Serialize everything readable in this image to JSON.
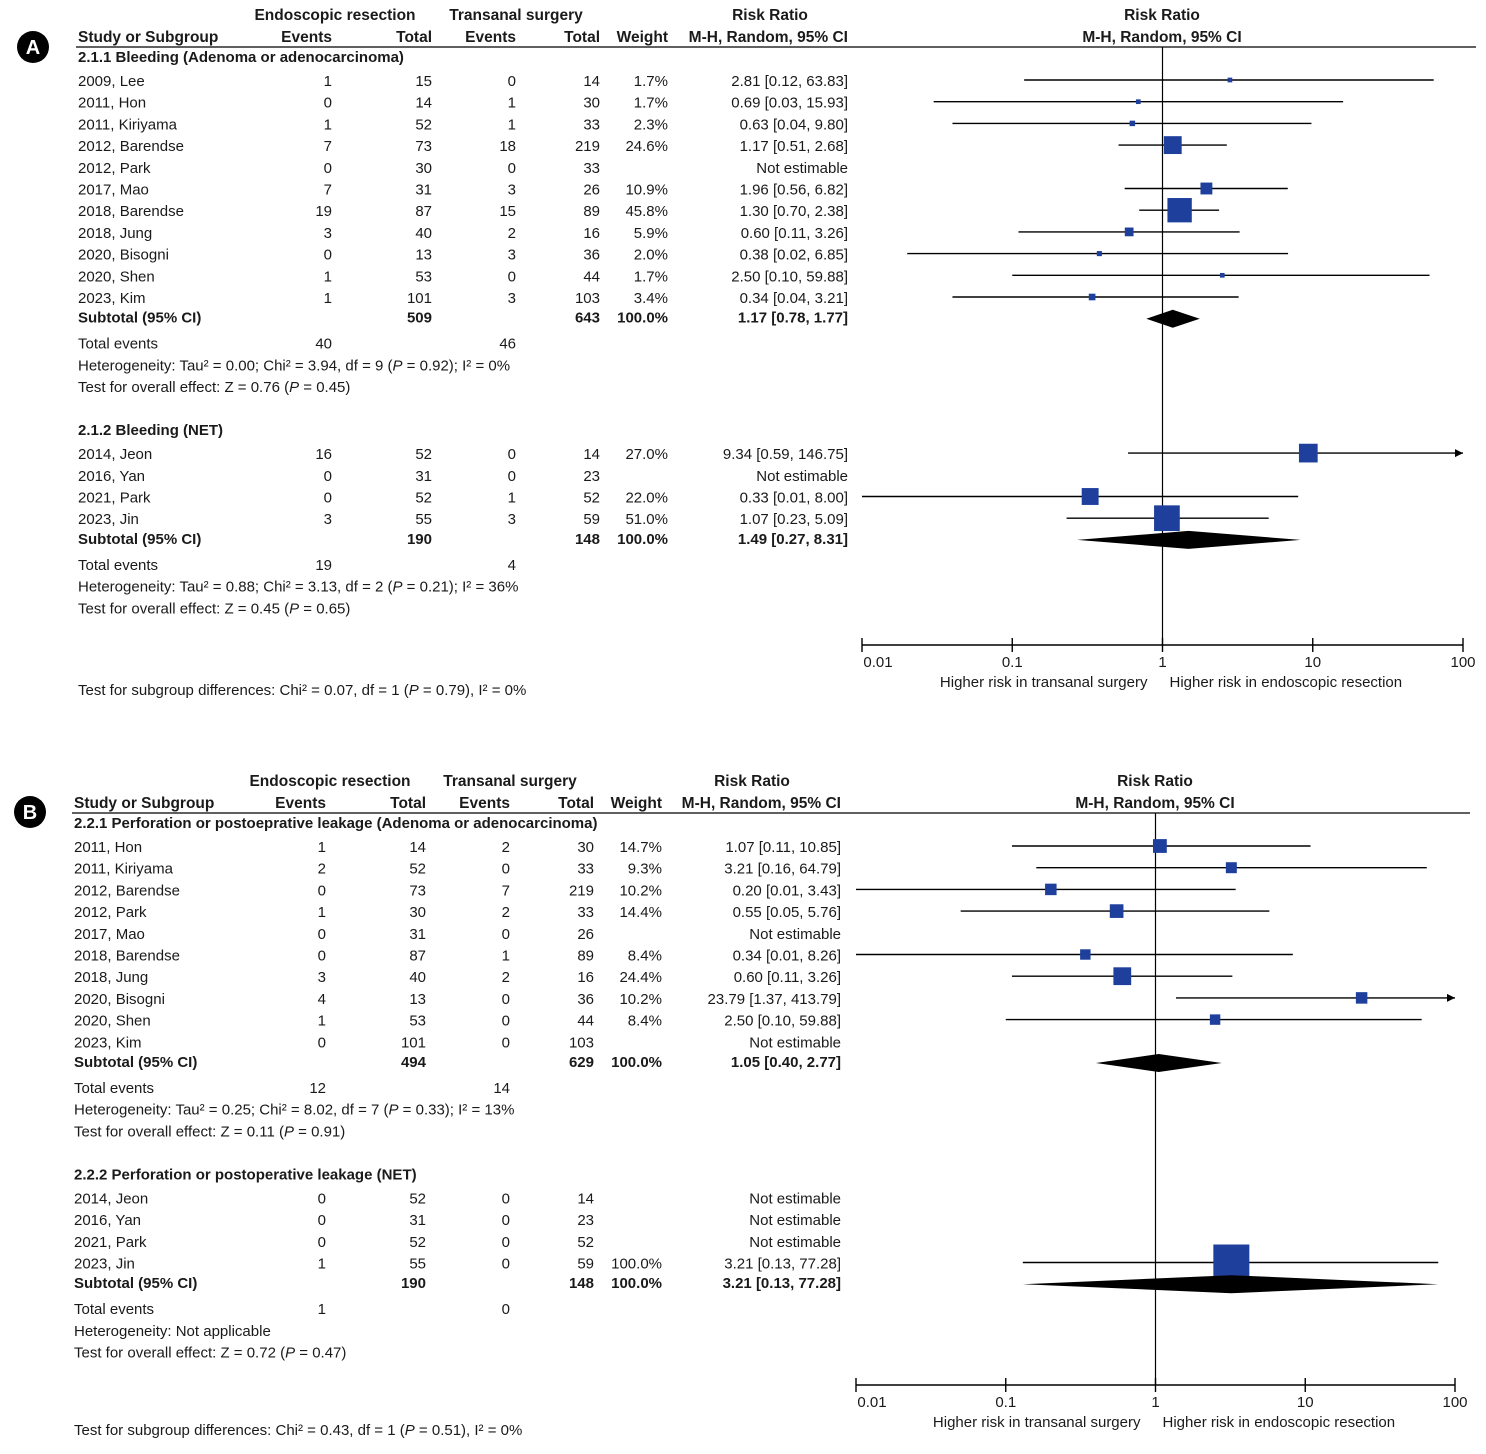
{
  "headers": {
    "group_e": "Endoscopic resection",
    "group_t": "Transanal surgery",
    "rr_head": "Risk Ratio",
    "col_study": "Study or Subgroup",
    "col_events": "Events",
    "col_total": "Total",
    "col_weight": "Weight",
    "col_rr": "M-H, Random, 95% CI"
  },
  "colors": {
    "square": "#1f3f9c",
    "diamond": "#000000",
    "line": "#000000",
    "badge": "#000000"
  },
  "axis": {
    "scale": "log",
    "ticks": [
      0.01,
      0.1,
      1,
      10,
      100
    ],
    "tick_labels": [
      "0.01",
      "0.1",
      "1",
      "10",
      "100"
    ],
    "left_label": "Higher risk in transanal surgery",
    "right_label": "Higher risk in endoscopic resection"
  },
  "chart_data": [
    {
      "type": "forest",
      "panel": "A",
      "subgroups": [
        {
          "title": "2.1.1 Bleeding (Adenoma or adenocarcinoma)",
          "studies": [
            {
              "name": "2009, Lee",
              "e_events": "1",
              "e_total": "15",
              "t_events": "0",
              "t_total": "14",
              "weight": "1.7%",
              "rr_text": "2.81 [0.12, 63.83]",
              "rr": 2.81,
              "lo": 0.12,
              "hi": 63.83,
              "w": 1.7
            },
            {
              "name": "2011, Hon",
              "e_events": "0",
              "e_total": "14",
              "t_events": "1",
              "t_total": "30",
              "weight": "1.7%",
              "rr_text": "0.69 [0.03, 15.93]",
              "rr": 0.69,
              "lo": 0.03,
              "hi": 15.93,
              "w": 1.7
            },
            {
              "name": "2011, Kiriyama",
              "e_events": "1",
              "e_total": "52",
              "t_events": "1",
              "t_total": "33",
              "weight": "2.3%",
              "rr_text": "0.63 [0.04, 9.80]",
              "rr": 0.63,
              "lo": 0.04,
              "hi": 9.8,
              "w": 2.3
            },
            {
              "name": "2012, Barendse",
              "e_events": "7",
              "e_total": "73",
              "t_events": "18",
              "t_total": "219",
              "weight": "24.6%",
              "rr_text": "1.17 [0.51, 2.68]",
              "rr": 1.17,
              "lo": 0.51,
              "hi": 2.68,
              "w": 24.6
            },
            {
              "name": "2012, Park",
              "e_events": "0",
              "e_total": "30",
              "t_events": "0",
              "t_total": "33",
              "weight": "",
              "rr_text": "Not estimable",
              "rr": null,
              "lo": null,
              "hi": null,
              "w": 0
            },
            {
              "name": "2017, Mao",
              "e_events": "7",
              "e_total": "31",
              "t_events": "3",
              "t_total": "26",
              "weight": "10.9%",
              "rr_text": "1.96 [0.56, 6.82]",
              "rr": 1.96,
              "lo": 0.56,
              "hi": 6.82,
              "w": 10.9
            },
            {
              "name": "2018, Barendse",
              "e_events": "19",
              "e_total": "87",
              "t_events": "15",
              "t_total": "89",
              "weight": "45.8%",
              "rr_text": "1.30 [0.70, 2.38]",
              "rr": 1.3,
              "lo": 0.7,
              "hi": 2.38,
              "w": 45.8
            },
            {
              "name": "2018, Jung",
              "e_events": "3",
              "e_total": "40",
              "t_events": "2",
              "t_total": "16",
              "weight": "5.9%",
              "rr_text": "0.60 [0.11, 3.26]",
              "rr": 0.6,
              "lo": 0.11,
              "hi": 3.26,
              "w": 5.9
            },
            {
              "name": "2020, Bisogni",
              "e_events": "0",
              "e_total": "13",
              "t_events": "3",
              "t_total": "36",
              "weight": "2.0%",
              "rr_text": "0.38 [0.02, 6.85]",
              "rr": 0.38,
              "lo": 0.02,
              "hi": 6.85,
              "w": 2.0
            },
            {
              "name": "2020, Shen",
              "e_events": "1",
              "e_total": "53",
              "t_events": "0",
              "t_total": "44",
              "weight": "1.7%",
              "rr_text": "2.50 [0.10, 59.88]",
              "rr": 2.5,
              "lo": 0.1,
              "hi": 59.88,
              "w": 1.7
            },
            {
              "name": "2023, Kim",
              "e_events": "1",
              "e_total": "101",
              "t_events": "3",
              "t_total": "103",
              "weight": "3.4%",
              "rr_text": "0.34 [0.04, 3.21]",
              "rr": 0.34,
              "lo": 0.04,
              "hi": 3.21,
              "w": 3.4
            }
          ],
          "subtotal": {
            "label": "Subtotal (95% CI)",
            "e_total": "509",
            "t_total": "643",
            "weight": "100.0%",
            "rr_text": "1.17 [0.78, 1.77]",
            "rr": 1.17,
            "lo": 0.78,
            "hi": 1.77
          },
          "total_events": {
            "label": "Total events",
            "e": "40",
            "t": "46"
          },
          "heterogeneity": [
            "Heterogeneity: Tau² = 0.00; Chi² = 3.94, df = 9 (",
            "P",
            " = 0.92); I² = 0%"
          ],
          "overall": [
            "Test for overall effect: Z = 0.76 (",
            "P",
            " = 0.45)"
          ]
        },
        {
          "title": "2.1.2 Bleeding (NET)",
          "studies": [
            {
              "name": "2014, Jeon",
              "e_events": "16",
              "e_total": "52",
              "t_events": "0",
              "t_total": "14",
              "weight": "27.0%",
              "rr_text": "9.34 [0.59, 146.75]",
              "rr": 9.34,
              "lo": 0.59,
              "hi": 146.75,
              "w": 27.0
            },
            {
              "name": "2016, Yan",
              "e_events": "0",
              "e_total": "31",
              "t_events": "0",
              "t_total": "23",
              "weight": "",
              "rr_text": "Not estimable",
              "rr": null,
              "lo": null,
              "hi": null,
              "w": 0
            },
            {
              "name": "2021, Park",
              "e_events": "0",
              "e_total": "52",
              "t_events": "1",
              "t_total": "52",
              "weight": "22.0%",
              "rr_text": "0.33 [0.01, 8.00]",
              "rr": 0.33,
              "lo": 0.01,
              "hi": 8.0,
              "w": 22.0
            },
            {
              "name": "2023, Jin",
              "e_events": "3",
              "e_total": "55",
              "t_events": "3",
              "t_total": "59",
              "weight": "51.0%",
              "rr_text": "1.07 [0.23, 5.09]",
              "rr": 1.07,
              "lo": 0.23,
              "hi": 5.09,
              "w": 51.0
            }
          ],
          "subtotal": {
            "label": "Subtotal (95% CI)",
            "e_total": "190",
            "t_total": "148",
            "weight": "100.0%",
            "rr_text": "1.49 [0.27, 8.31]",
            "rr": 1.49,
            "lo": 0.27,
            "hi": 8.31
          },
          "total_events": {
            "label": "Total events",
            "e": "19",
            "t": "4"
          },
          "heterogeneity": [
            "Heterogeneity: Tau² = 0.88; Chi² = 3.13, df = 2 (",
            "P",
            " = 0.21); I² = 36%"
          ],
          "overall": [
            "Test for overall effect: Z = 0.45 (",
            "P",
            " = 0.65)"
          ]
        }
      ],
      "subgroup_diff": [
        "Test for subgroup differences: Chi² = 0.07, df = 1 (",
        "P",
        " = 0.79), I² = 0%"
      ]
    },
    {
      "type": "forest",
      "panel": "B",
      "subgroups": [
        {
          "title": "2.2.1 Perforation or postoeprative leakage (Adenoma or adenocarcinoma)",
          "studies": [
            {
              "name": "2011, Hon",
              "e_events": "1",
              "e_total": "14",
              "t_events": "2",
              "t_total": "30",
              "weight": "14.7%",
              "rr_text": "1.07 [0.11, 10.85]",
              "rr": 1.07,
              "lo": 0.11,
              "hi": 10.85,
              "w": 14.7
            },
            {
              "name": "2011, Kiriyama",
              "e_events": "2",
              "e_total": "52",
              "t_events": "0",
              "t_total": "33",
              "weight": "9.3%",
              "rr_text": "3.21 [0.16, 64.79]",
              "rr": 3.21,
              "lo": 0.16,
              "hi": 64.79,
              "w": 9.3
            },
            {
              "name": "2012, Barendse",
              "e_events": "0",
              "e_total": "73",
              "t_events": "7",
              "t_total": "219",
              "weight": "10.2%",
              "rr_text": "0.20 [0.01, 3.43]",
              "rr": 0.2,
              "lo": 0.01,
              "hi": 3.43,
              "w": 10.2
            },
            {
              "name": "2012, Park",
              "e_events": "1",
              "e_total": "30",
              "t_events": "2",
              "t_total": "33",
              "weight": "14.4%",
              "rr_text": "0.55 [0.05, 5.76]",
              "rr": 0.55,
              "lo": 0.05,
              "hi": 5.76,
              "w": 14.4
            },
            {
              "name": "2017, Mao",
              "e_events": "0",
              "e_total": "31",
              "t_events": "0",
              "t_total": "26",
              "weight": "",
              "rr_text": "Not estimable",
              "rr": null,
              "lo": null,
              "hi": null,
              "w": 0
            },
            {
              "name": "2018, Barendse",
              "e_events": "0",
              "e_total": "87",
              "t_events": "1",
              "t_total": "89",
              "weight": "8.4%",
              "rr_text": "0.34 [0.01, 8.26]",
              "rr": 0.34,
              "lo": 0.01,
              "hi": 8.26,
              "w": 8.4
            },
            {
              "name": "2018, Jung",
              "e_events": "3",
              "e_total": "40",
              "t_events": "2",
              "t_total": "16",
              "weight": "24.4%",
              "rr_text": "0.60 [0.11, 3.26]",
              "rr": 0.6,
              "lo": 0.11,
              "hi": 3.26,
              "w": 24.4
            },
            {
              "name": "2020, Bisogni",
              "e_events": "4",
              "e_total": "13",
              "t_events": "0",
              "t_total": "36",
              "weight": "10.2%",
              "rr_text": "23.79 [1.37, 413.79]",
              "rr": 23.79,
              "lo": 1.37,
              "hi": 413.79,
              "w": 10.2
            },
            {
              "name": "2020, Shen",
              "e_events": "1",
              "e_total": "53",
              "t_events": "0",
              "t_total": "44",
              "weight": "8.4%",
              "rr_text": "2.50 [0.10, 59.88]",
              "rr": 2.5,
              "lo": 0.1,
              "hi": 59.88,
              "w": 8.4
            },
            {
              "name": "2023, Kim",
              "e_events": "0",
              "e_total": "101",
              "t_events": "0",
              "t_total": "103",
              "weight": "",
              "rr_text": "Not estimable",
              "rr": null,
              "lo": null,
              "hi": null,
              "w": 0
            }
          ],
          "subtotal": {
            "label": "Subtotal (95% CI)",
            "e_total": "494",
            "t_total": "629",
            "weight": "100.0%",
            "rr_text": "1.05 [0.40, 2.77]",
            "rr": 1.05,
            "lo": 0.4,
            "hi": 2.77
          },
          "total_events": {
            "label": "Total events",
            "e": "12",
            "t": "14"
          },
          "heterogeneity": [
            "Heterogeneity: Tau² = 0.25; Chi² = 8.02, df = 7 (",
            "P",
            " = 0.33); I² = 13%"
          ],
          "overall": [
            "Test for overall effect: Z = 0.11 (",
            "P",
            " = 0.91)"
          ]
        },
        {
          "title": "2.2.2 Perforation or postoperative leakage (NET)",
          "studies": [
            {
              "name": "2014, Jeon",
              "e_events": "0",
              "e_total": "52",
              "t_events": "0",
              "t_total": "14",
              "weight": "",
              "rr_text": "Not estimable",
              "rr": null,
              "lo": null,
              "hi": null,
              "w": 0
            },
            {
              "name": "2016, Yan",
              "e_events": "0",
              "e_total": "31",
              "t_events": "0",
              "t_total": "23",
              "weight": "",
              "rr_text": "Not estimable",
              "rr": null,
              "lo": null,
              "hi": null,
              "w": 0
            },
            {
              "name": "2021, Park",
              "e_events": "0",
              "e_total": "52",
              "t_events": "0",
              "t_total": "52",
              "weight": "",
              "rr_text": "Not estimable",
              "rr": null,
              "lo": null,
              "hi": null,
              "w": 0
            },
            {
              "name": "2023, Jin",
              "e_events": "1",
              "e_total": "55",
              "t_events": "0",
              "t_total": "59",
              "weight": "100.0%",
              "rr_text": "3.21 [0.13, 77.28]",
              "rr": 3.21,
              "lo": 0.13,
              "hi": 77.28,
              "w": 100.0
            }
          ],
          "subtotal": {
            "label": "Subtotal (95% CI)",
            "e_total": "190",
            "t_total": "148",
            "weight": "100.0%",
            "rr_text": "3.21 [0.13, 77.28]",
            "rr": 3.21,
            "lo": 0.13,
            "hi": 77.28
          },
          "total_events": {
            "label": "Total events",
            "e": "1",
            "t": "0"
          },
          "heterogeneity": [
            "Heterogeneity: Not applicable"
          ],
          "overall": [
            "Test for overall effect: Z = 0.72 (",
            "P",
            " = 0.47)"
          ]
        }
      ],
      "subgroup_diff": [
        "Test for subgroup differences: Chi² = 0.43, df = 1 (",
        "P",
        " = 0.51), I² = 0%"
      ]
    }
  ]
}
